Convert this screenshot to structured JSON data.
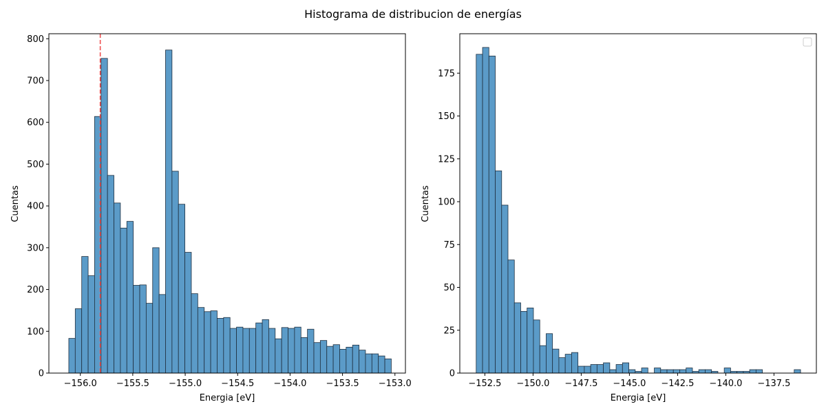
{
  "figure": {
    "title": "Histograma de distribucion de energías"
  },
  "colors": {
    "bar_fill": "#5b9bc8",
    "bar_edge": "#1f2f3f",
    "reference_line": "#f05050"
  },
  "chart_data": [
    {
      "type": "bar",
      "histogram": true,
      "xlabel": "Energia [eV]",
      "ylabel": "Cuentas",
      "xlim": [
        -156.3,
        -152.9
      ],
      "ylim": [
        0,
        812
      ],
      "xticks": [
        -156.0,
        -155.5,
        -155.0,
        -154.5,
        -154.0,
        -153.5,
        -153.0
      ],
      "xtick_labels": [
        "−156.0",
        "−155.5",
        "−155.0",
        "−154.5",
        "−154.0",
        "−153.5",
        "−153.0"
      ],
      "yticks": [
        0,
        100,
        200,
        300,
        400,
        500,
        600,
        700,
        800
      ],
      "ytick_labels": [
        "0",
        "100",
        "200",
        "300",
        "400",
        "500",
        "600",
        "700",
        "800"
      ],
      "bin_start": -156.11,
      "bin_width": 0.0615,
      "values": [
        83,
        154,
        279,
        233,
        614,
        753,
        473,
        407,
        347,
        363,
        210,
        211,
        167,
        300,
        188,
        773,
        483,
        404,
        289,
        190,
        157,
        147,
        149,
        131,
        133,
        107,
        110,
        107,
        107,
        120,
        128,
        107,
        82,
        109,
        107,
        110,
        85,
        105,
        73,
        78,
        64,
        68,
        57,
        62,
        67,
        55,
        46,
        46,
        41,
        34
      ],
      "reference_line": {
        "x": -155.81,
        "style": "dashed"
      },
      "legend": "none"
    },
    {
      "type": "bar",
      "histogram": true,
      "xlabel": "Energia [eV]",
      "ylabel": "Cuentas",
      "xlim": [
        -153.8,
        -135.3
      ],
      "ylim": [
        0,
        198
      ],
      "xticks": [
        -152.5,
        -150.0,
        -147.5,
        -145.0,
        -142.5,
        -140.0,
        -137.5
      ],
      "xtick_labels": [
        "−152.5",
        "−150.0",
        "−147.5",
        "−145.0",
        "−142.5",
        "−140.0",
        "−137.5"
      ],
      "yticks": [
        0,
        25,
        50,
        75,
        100,
        125,
        150,
        175
      ],
      "ytick_labels": [
        "0",
        "25",
        "50",
        "75",
        "100",
        "125",
        "150",
        "175"
      ],
      "bin_start": -152.95,
      "bin_width": 0.33,
      "values": [
        186,
        190,
        185,
        118,
        98,
        66,
        41,
        36,
        38,
        31,
        16,
        23,
        14,
        9,
        11,
        12,
        4,
        4,
        5,
        5,
        6,
        2,
        5,
        6,
        2,
        1,
        3,
        0,
        3,
        2,
        2,
        2,
        2,
        3,
        1,
        2,
        2,
        1,
        0,
        3,
        1,
        1,
        1,
        2,
        2,
        0,
        0,
        0,
        0,
        0,
        2
      ],
      "legend": "top-right (empty)"
    }
  ]
}
